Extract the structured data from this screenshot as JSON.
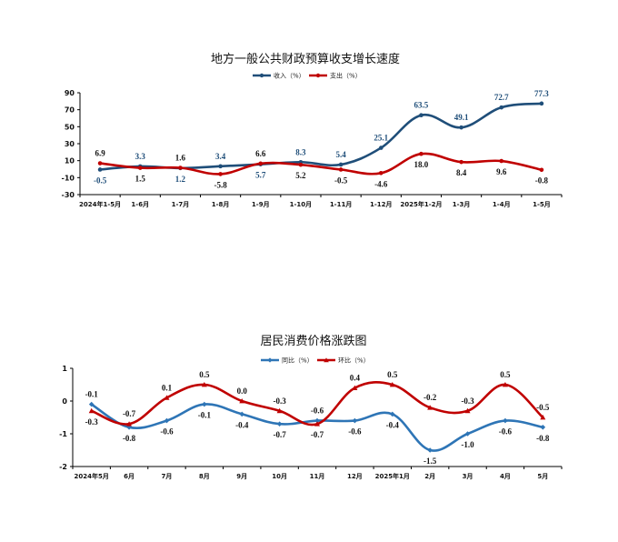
{
  "chart_data": [
    {
      "type": "line",
      "title": "地方一般公共财政预算收支增长速度",
      "categories": [
        "2024年1-5月",
        "1-6月",
        "1-7月",
        "1-8月",
        "1-9月",
        "1-10月",
        "1-11月",
        "1-12月",
        "2025年1-2月",
        "1-3月",
        "1-4月",
        "1-5月"
      ],
      "series": [
        {
          "name": "收入（%）",
          "color": "#1f4e79",
          "values": [
            -0.5,
            3.3,
            1.2,
            3.4,
            5.7,
            8.3,
            5.4,
            25.1,
            63.5,
            49.1,
            72.7,
            77.3
          ]
        },
        {
          "name": "支出（%）",
          "color": "#c00000",
          "values": [
            6.9,
            1.5,
            1.6,
            -5.8,
            6.6,
            5.2,
            -0.5,
            -4.6,
            18.0,
            8.4,
            9.6,
            -0.8
          ]
        }
      ],
      "ylim": [
        -30,
        90
      ],
      "yticks": [
        -30,
        -10,
        10,
        30,
        50,
        70,
        90
      ],
      "legend": "top-center"
    },
    {
      "type": "line",
      "title": "居民消费价格涨跌图",
      "categories": [
        "2024年5月",
        "6月",
        "7月",
        "8月",
        "9月",
        "10月",
        "11月",
        "12月",
        "2025年1月",
        "2月",
        "3月",
        "4月",
        "5月"
      ],
      "series": [
        {
          "name": "同比（%）",
          "color": "#2e75b6",
          "values": [
            -0.1,
            -0.8,
            -0.6,
            -0.1,
            -0.4,
            -0.7,
            -0.6,
            -0.6,
            -0.4,
            -1.5,
            -1.0,
            -0.6,
            -0.8
          ]
        },
        {
          "name": "环比（%）",
          "color": "#c00000",
          "values": [
            -0.3,
            -0.7,
            0.1,
            0.5,
            0.0,
            -0.3,
            -0.7,
            0.4,
            0.5,
            -0.2,
            -0.3,
            0.5,
            -0.5
          ]
        }
      ],
      "ylim": [
        -2,
        1
      ],
      "yticks": [
        -2,
        -1,
        0,
        1
      ],
      "legend": "top-center"
    }
  ]
}
